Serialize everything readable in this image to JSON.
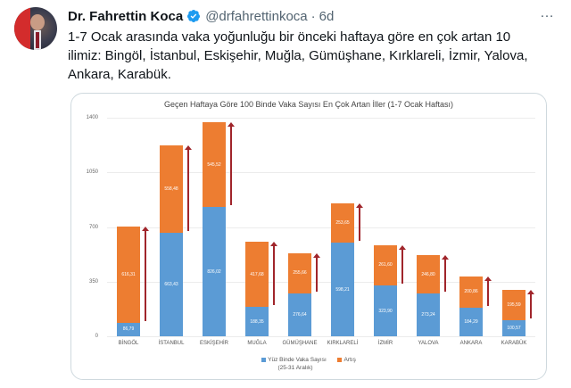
{
  "tweet": {
    "author_name": "Dr. Fahrettin Koca",
    "verified": true,
    "handle": "@drfahrettinkoca",
    "separator": "·",
    "time": "6d",
    "more_icon": "…",
    "text": "1-7 Ocak arasında vaka yoğunluğu bir önceki haftaya göre en çok artan 10 ilimiz: Bingöl, İstanbul, Eskişehir, Muğla, Gümüşhane, Kırklareli, İzmir, Yalova, Ankara, Karabük."
  },
  "colors": {
    "blue_series": "#5b9bd5",
    "orange_series": "#ed7d31",
    "arrow": "#a0252b",
    "verified_badge": "#1d9bf0"
  },
  "chart_data": {
    "type": "bar",
    "stacked": true,
    "title": "Geçen Haftaya Göre 100 Binde Vaka Sayısı En Çok Artan İller (1-7 Ocak Haftası)",
    "xlabel": "",
    "ylabel": "",
    "ylim": [
      0,
      1400
    ],
    "yticks": [
      0,
      350,
      700,
      1050,
      1400
    ],
    "grid": true,
    "legend_position": "bottom",
    "categories": [
      "BİNGÖL",
      "İSTANBUL",
      "ESKİŞEHİR",
      "MUĞLA",
      "GÜMÜŞHANE",
      "KIRKLARELİ",
      "İZMİR",
      "YALOVA",
      "ANKARA",
      "KARABÜK"
    ],
    "series": [
      {
        "name": "Yüz Binde Vaka Sayısı (25-31 Aralık)",
        "color": "#5b9bd5",
        "values": [
          86.79,
          663.43,
          826.02,
          188.35,
          276.64,
          598.21,
          323.9,
          273.24,
          184.29,
          100.57
        ],
        "labels": [
          "86,79",
          "663,43",
          "826,02",
          "188,35",
          "276,64",
          "598,21",
          "323,90",
          "273,24",
          "184,29",
          "100,57"
        ]
      },
      {
        "name": "Artış",
        "color": "#ed7d31",
        "values": [
          616.31,
          558.48,
          545.52,
          417.68,
          255.66,
          253.65,
          261.6,
          246.8,
          200.86,
          195.59
        ],
        "labels": [
          "616,31",
          "558,48",
          "545,52",
          "417,68",
          "255,66",
          "253,65",
          "261,60",
          "246,80",
          "200,86",
          "195,59"
        ]
      }
    ],
    "annotations": "Red upward arrow beside each bar indicating increase"
  },
  "legend": {
    "blue_label_line1": "Yüz Binde Vaka Sayısı",
    "blue_label_line2": "(25-31 Aralık)",
    "orange_label": "Artış"
  }
}
